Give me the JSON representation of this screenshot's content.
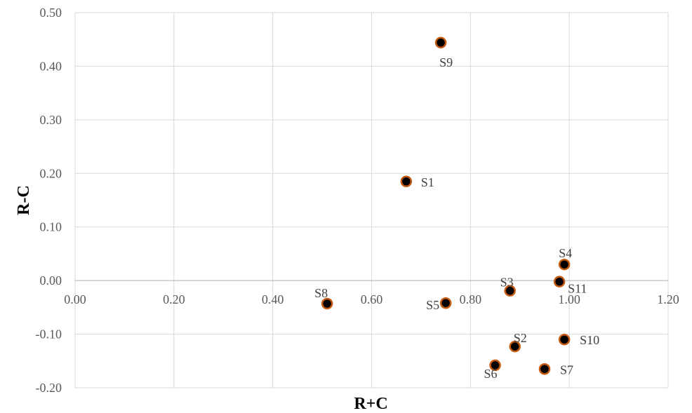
{
  "chart_data": {
    "type": "scatter",
    "title": "",
    "xlabel": "R+C",
    "ylabel": "R-C",
    "xlim": [
      0.0,
      1.2
    ],
    "ylim": [
      -0.2,
      0.5
    ],
    "x_ticks": [
      "0.00",
      "0.20",
      "0.40",
      "0.60",
      "0.80",
      "1.00",
      "1.20"
    ],
    "y_ticks": [
      "-0.20",
      "-0.10",
      "0.00",
      "0.10",
      "0.20",
      "0.30",
      "0.40",
      "0.50"
    ],
    "grid": true,
    "legend": "none",
    "marker_fill": "#000000",
    "marker_edge": "#c55a11",
    "points": [
      {
        "label": "S1",
        "x": 0.67,
        "y": 0.185
      },
      {
        "label": "S2",
        "x": 0.89,
        "y": -0.123
      },
      {
        "label": "S3",
        "x": 0.88,
        "y": -0.019
      },
      {
        "label": "S4",
        "x": 0.99,
        "y": 0.03
      },
      {
        "label": "S5",
        "x": 0.75,
        "y": -0.042
      },
      {
        "label": "S6",
        "x": 0.85,
        "y": -0.158
      },
      {
        "label": "S7",
        "x": 0.95,
        "y": -0.165
      },
      {
        "label": "S8",
        "x": 0.51,
        "y": -0.043
      },
      {
        "label": "S9",
        "x": 0.74,
        "y": 0.444
      },
      {
        "label": "S10",
        "x": 0.99,
        "y": -0.11
      },
      {
        "label": "S11",
        "x": 0.98,
        "y": -0.002
      }
    ]
  }
}
